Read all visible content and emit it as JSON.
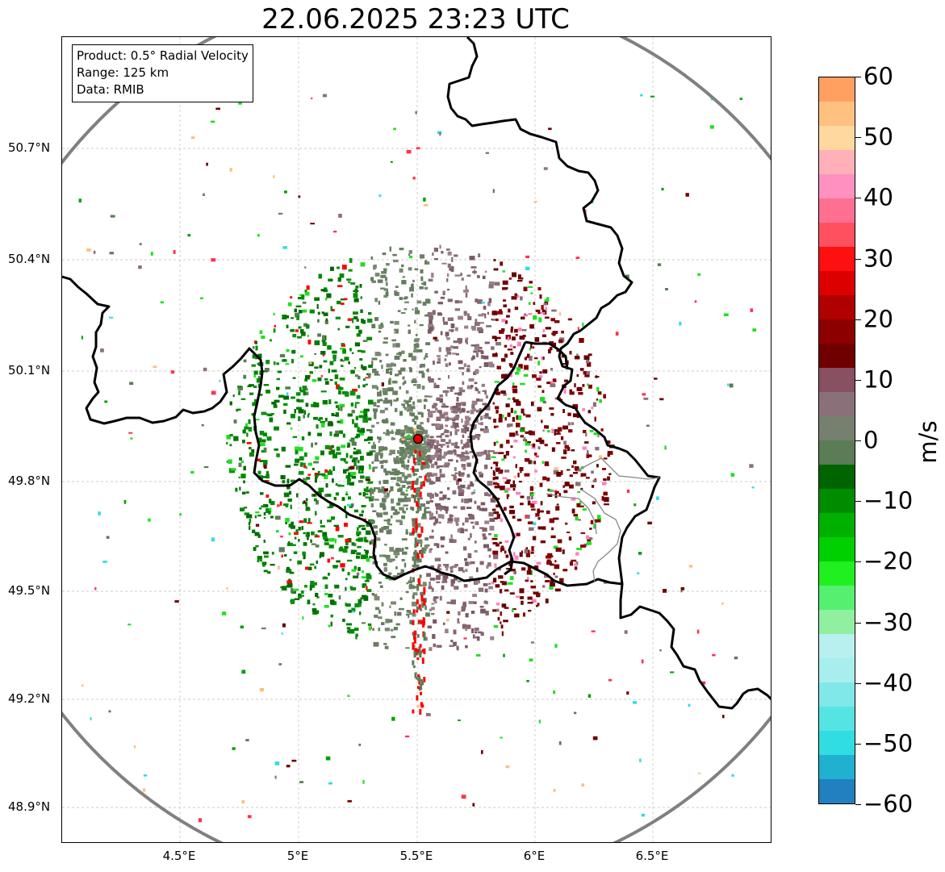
{
  "title": "22.06.2025 23:23 UTC",
  "info_box": {
    "product": "Product: 0.5° Radial Velocity",
    "range": "Range: 125 km",
    "data": "Data: RMIB"
  },
  "latitude_ticks": [
    "50.7°N",
    "50.4°N",
    "50.1°N",
    "49.8°N",
    "49.5°N",
    "49.2°N",
    "48.9°N"
  ],
  "longitude_ticks": [
    "4.5°E",
    "5°E",
    "5.5°E",
    "6°E",
    "6.5°E"
  ],
  "colorbar": {
    "unit": "m/s",
    "ticks": [
      "60",
      "50",
      "40",
      "30",
      "20",
      "10",
      "0",
      "−10",
      "−20",
      "−30",
      "−40",
      "−50",
      "−60"
    ],
    "min": -60,
    "max": 60,
    "colors": [
      "#2080c0",
      "#20b0d0",
      "#30dde0",
      "#55e4e4",
      "#80e8e8",
      "#a8eeee",
      "#b8f0f0",
      "#90f0a0",
      "#55f070",
      "#20f020",
      "#00d000",
      "#00b000",
      "#008c00",
      "#006400",
      "#5a7d55",
      "#75806e",
      "#8a7078",
      "#885060",
      "#700000",
      "#8c0000",
      "#b00000",
      "#dd0000",
      "#ff1010",
      "#ff5060",
      "#ff7090",
      "#ff90c0",
      "#ffb0b8",
      "#ffd8a0",
      "#ffc080",
      "#ffa060"
    ]
  },
  "radar_site": {
    "lon": 5.5,
    "lat": 49.91
  },
  "colors": {
    "range_ring": "#808080",
    "border": "#000000",
    "grid": "#bbbbbb",
    "site_marker": "#e00000"
  }
}
